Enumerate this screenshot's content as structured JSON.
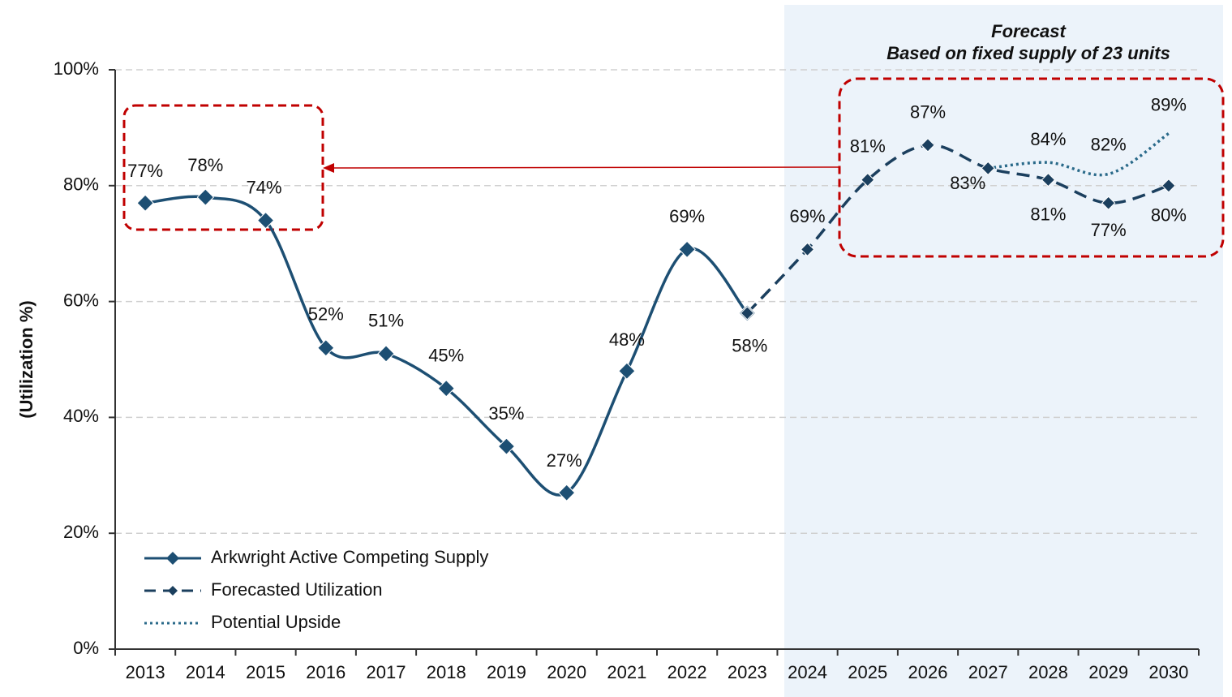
{
  "chart_data": {
    "type": "line",
    "annotations": [
      "Forecast",
      "Based on fixed supply of 23 units"
    ],
    "y_label": "(Utilization  %)",
    "categories": [
      "2013",
      "2014",
      "2015",
      "2016",
      "2017",
      "2018",
      "2019",
      "2020",
      "2021",
      "2022",
      "2023",
      "2024",
      "2025",
      "2026",
      "2027",
      "2028",
      "2029",
      "2030"
    ],
    "series": [
      {
        "name": "Arkwright Active Competing Supply",
        "color": "#1d4f73",
        "style": "solid",
        "values": [
          77,
          78,
          74,
          52,
          51,
          45,
          35,
          27,
          48,
          69,
          58,
          null,
          null,
          null,
          null,
          null,
          null,
          null
        ],
        "value_labels": [
          "77%",
          "78%",
          "74%",
          "52%",
          "51%",
          "45%",
          "35%",
          "27%",
          "48%",
          "69%",
          "58%",
          null,
          null,
          null,
          null,
          null,
          null,
          null
        ]
      },
      {
        "name": "Forecasted Utilization",
        "color": "#1b3f5e",
        "style": "dashed",
        "values": [
          null,
          null,
          null,
          null,
          null,
          null,
          null,
          null,
          null,
          null,
          58,
          69,
          81,
          87,
          83,
          81,
          77,
          80
        ],
        "value_labels": [
          null,
          null,
          null,
          null,
          null,
          null,
          null,
          null,
          null,
          null,
          null,
          "69%",
          "81%",
          "87%",
          "83%",
          "81%",
          "77%",
          "80%"
        ]
      },
      {
        "name": "Potential Upside",
        "color": "#2a6a8a",
        "style": "dotted",
        "values": [
          null,
          null,
          null,
          null,
          null,
          null,
          null,
          null,
          null,
          null,
          null,
          null,
          null,
          null,
          83,
          84,
          82,
          89
        ],
        "value_labels": [
          null,
          null,
          null,
          null,
          null,
          null,
          null,
          null,
          null,
          null,
          null,
          null,
          null,
          null,
          null,
          "84%",
          "82%",
          "89%"
        ]
      }
    ],
    "ylim": [
      0,
      100
    ],
    "yticks": [
      {
        "value": 0,
        "label": "0%"
      },
      {
        "value": 20,
        "label": "20%"
      },
      {
        "value": 40,
        "label": "40%"
      },
      {
        "value": 60,
        "label": "60%"
      },
      {
        "value": 80,
        "label": "80%"
      },
      {
        "value": 100,
        "label": "100%"
      }
    ],
    "grid": true
  }
}
